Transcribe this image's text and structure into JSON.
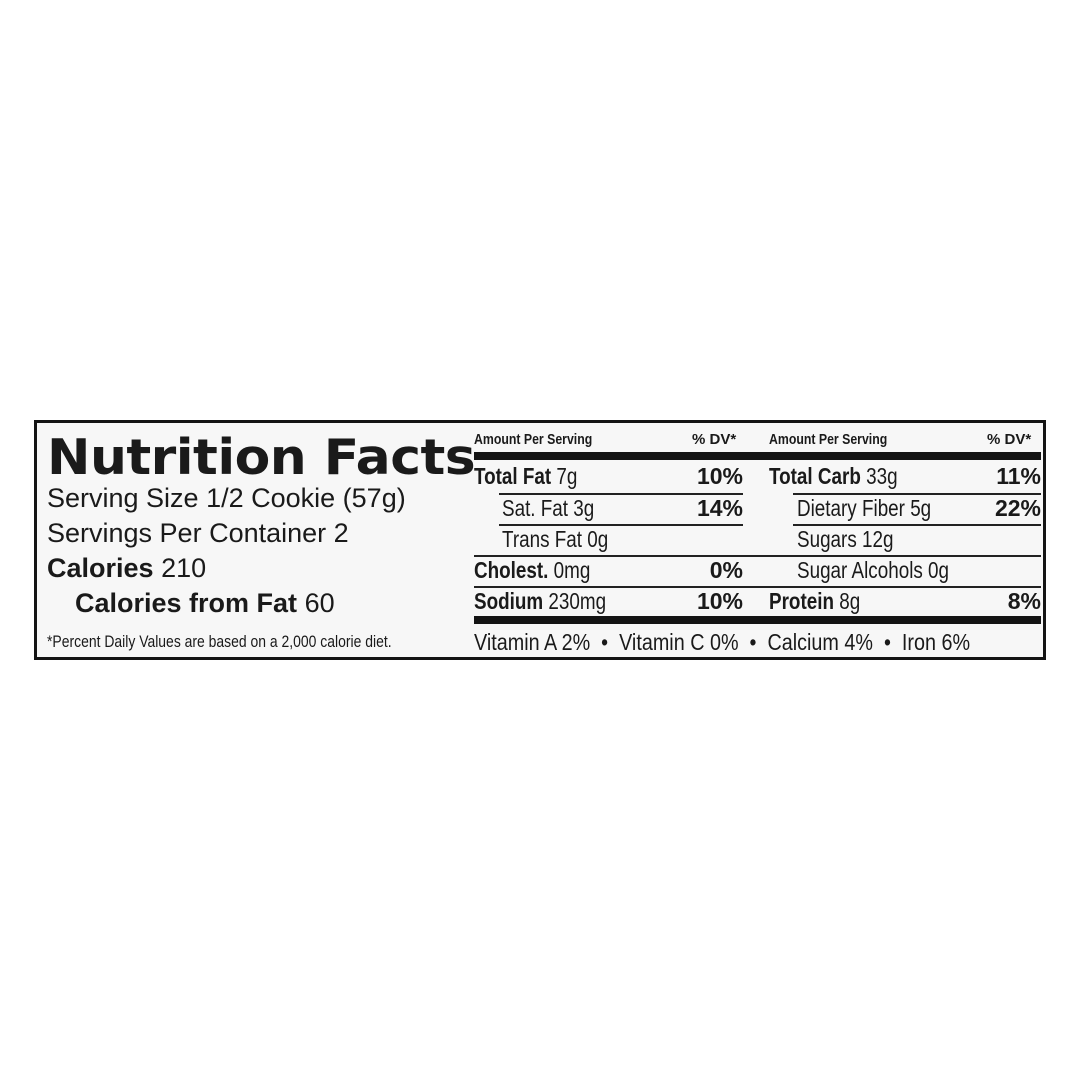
{
  "title": "Nutrition Facts",
  "serving_size": {
    "label": "Serving Size",
    "value": "1/2 Cookie (57g)"
  },
  "servings_per_container": {
    "label": "Servings Per Container",
    "value": "2"
  },
  "calories": {
    "label": "Calories",
    "value": "210"
  },
  "calories_from_fat": {
    "label": "Calories from Fat",
    "value": "60"
  },
  "footnote": "*Percent Daily Values are based on a 2,000 calorie diet.",
  "header": {
    "amount": "Amount Per Serving",
    "dv": "% DV*"
  },
  "left_rows": [
    {
      "label": "Total Fat",
      "amount": "7g",
      "dv": "10%"
    },
    {
      "label": "Sat. Fat",
      "amount": "3g",
      "dv": "14%"
    },
    {
      "label": "Trans Fat",
      "amount": "0g",
      "dv": ""
    },
    {
      "label": "Cholest.",
      "amount": "0mg",
      "dv": "0%"
    },
    {
      "label": "Sodium",
      "amount": "230mg",
      "dv": "10%"
    }
  ],
  "right_rows": [
    {
      "label": "Total Carb",
      "amount": "33g",
      "dv": "11%"
    },
    {
      "label": "Dietary Fiber",
      "amount": "5g",
      "dv": "22%"
    },
    {
      "label": "Sugars",
      "amount": "12g",
      "dv": ""
    },
    {
      "label": "Sugar Alcohols",
      "amount": "0g",
      "dv": ""
    },
    {
      "label": "Protein",
      "amount": "8g",
      "dv": "8%"
    }
  ],
  "vitamins": "Vitamin A 2%  •  Vitamin C 0%  •  Calcium 4%  •  Iron 6%"
}
